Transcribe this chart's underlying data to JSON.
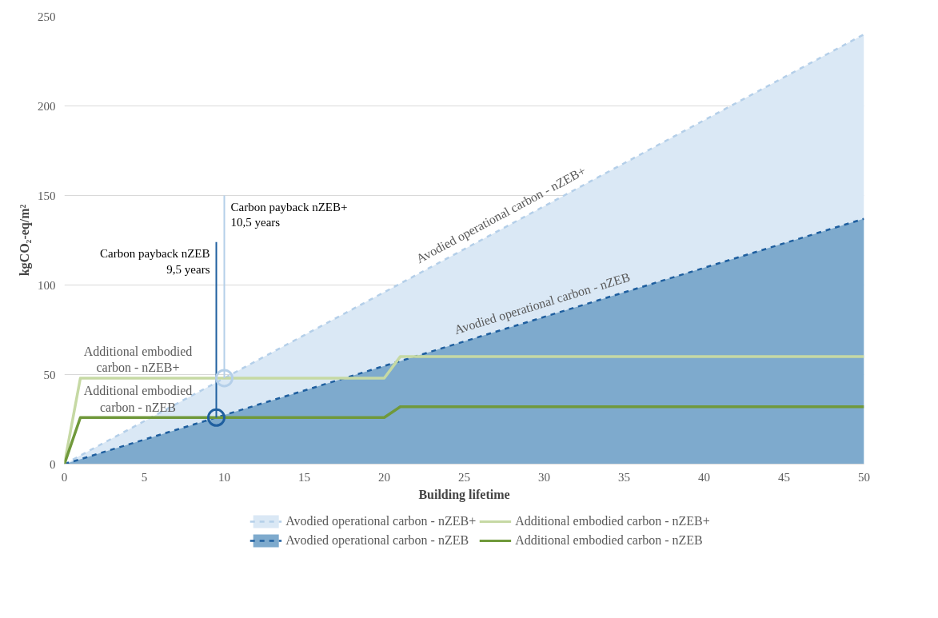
{
  "chart_data": {
    "type": "line",
    "xlabel": "Building lifetime",
    "ylabel": "kgCO₂-eq/m²",
    "xlim": [
      0,
      50
    ],
    "ylim": [
      0,
      250
    ],
    "xticks": [
      0,
      5,
      10,
      15,
      20,
      25,
      30,
      35,
      40,
      45,
      50
    ],
    "yticks": [
      0,
      50,
      100,
      150,
      200,
      250
    ],
    "grid": "y",
    "legend": "bottom",
    "series": [
      {
        "name": "Avodied operational carbon - nZEB+",
        "type": "area",
        "line_style": "dashed",
        "color": "#b4cfe9",
        "x": [
          0,
          50
        ],
        "values": [
          0,
          240
        ]
      },
      {
        "name": "Avodied operational carbon - nZEB",
        "type": "area",
        "line_style": "dashed",
        "color": "#1f5f9f",
        "x": [
          0,
          50
        ],
        "values": [
          0,
          137
        ]
      },
      {
        "name": "Additional embodied carbon - nZEB+",
        "type": "line",
        "line_style": "solid",
        "color": "#c6d9a4",
        "x": [
          0,
          1,
          20,
          21,
          50
        ],
        "values": [
          0,
          48,
          48,
          60,
          60
        ]
      },
      {
        "name": "Additional embodied carbon - nZEB",
        "type": "line",
        "line_style": "solid",
        "color": "#70993b",
        "x": [
          0,
          1,
          20,
          21,
          50
        ],
        "values": [
          0,
          26,
          26,
          32,
          32
        ]
      }
    ],
    "annotations": [
      {
        "text": "Carbon payback nZEB\n9,5 years",
        "x": 9.5,
        "y": 26
      },
      {
        "text": "Carbon payback nZEB+\n10,5 years",
        "x": 10,
        "y": 48
      }
    ]
  }
}
